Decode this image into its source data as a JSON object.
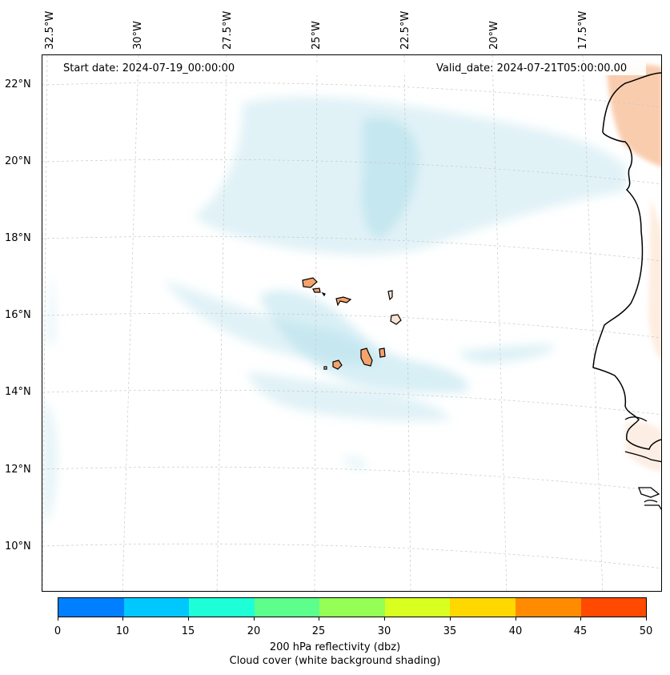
{
  "header": {
    "start_date": "Start date: 2024-07-19_00:00:00",
    "valid_date": "Valid_date: 2024-07-21T05:00:00.00"
  },
  "longitude_labels": [
    "32.5°W",
    "30°W",
    "27.5°W",
    "25°W",
    "22.5°W",
    "20°W",
    "17.5°W"
  ],
  "latitude_labels": [
    "22°N",
    "20°N",
    "18°N",
    "16°N",
    "14°N",
    "12°N",
    "10°N"
  ],
  "colorbar": {
    "ticks": [
      "0",
      "10",
      "15",
      "20",
      "25",
      "30",
      "35",
      "40",
      "45",
      "50"
    ],
    "colors": [
      "#0080ff",
      "#00c8ff",
      "#1effd8",
      "#5cff8c",
      "#96ff55",
      "#d8ff20",
      "#ffd800",
      "#ff8c00",
      "#ff4a00"
    ],
    "label": "200 hPa reflectivity (dbz)",
    "sublabel": "Cloud cover (white background shading)"
  },
  "colors": {
    "cloud": "#a9dbe8",
    "land_fill": "#f4a36b",
    "coastline": "#000000",
    "gridline": "#c8c8c8"
  }
}
